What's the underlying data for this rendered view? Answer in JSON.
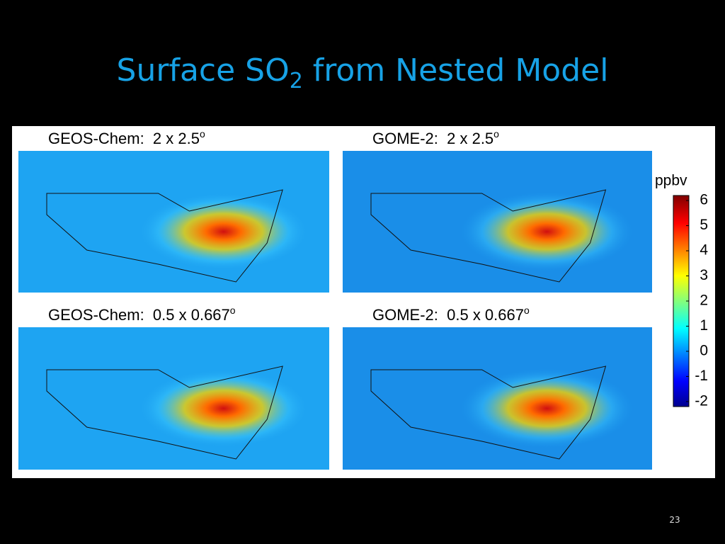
{
  "title": {
    "text": "Surface SO",
    "subscript": "2",
    "rest": " from Nested Model"
  },
  "panels": [
    {
      "label": "GEOS-Chem:  2 x 2.5",
      "superscript": "o"
    },
    {
      "label": "GOME-2:  2 x 2.5",
      "superscript": "o"
    },
    {
      "label": "GEOS-Chem:  0.5 x 0.667",
      "superscript": "o"
    },
    {
      "label": "GOME-2:  0.5 x 0.667",
      "superscript": "o"
    }
  ],
  "colorbar": {
    "label": "ppbv",
    "lim": [
      -2.2,
      6.2
    ],
    "ticks": [
      6,
      5,
      4,
      3,
      2,
      1,
      0,
      -1,
      -2
    ]
  },
  "page_number": "23"
}
